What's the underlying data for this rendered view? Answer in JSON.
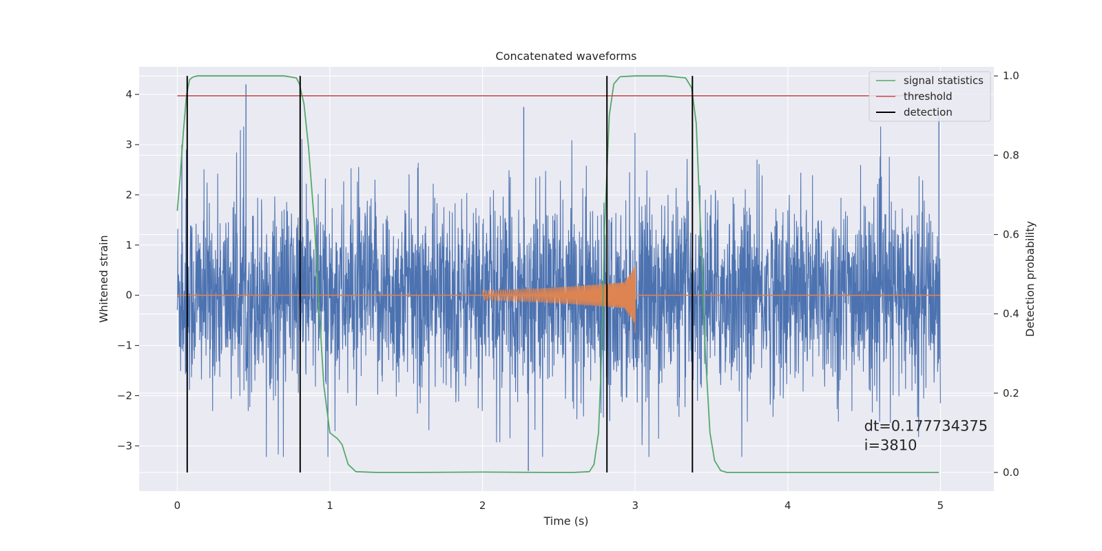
{
  "chart_data": {
    "type": "line",
    "title": "Concatenated waveforms",
    "xlabel": "Time (s)",
    "ylabel": "Whitened strain",
    "ylabel_right": "Detection probability",
    "xlim": [
      -0.25,
      5.35
    ],
    "ylim": [
      -3.9,
      4.55
    ],
    "ylim_right": [
      -0.047,
      1.023
    ],
    "xticks": [
      0,
      1,
      2,
      3,
      4,
      5
    ],
    "yticks": [
      -3,
      -2,
      -1,
      0,
      1,
      2,
      3,
      4
    ],
    "yticks_right": [
      0.0,
      0.2,
      0.4,
      0.6,
      0.8,
      1.0
    ],
    "xtick_labels": [
      "0",
      "1",
      "2",
      "3",
      "4",
      "5"
    ],
    "ytick_labels": [
      "−3",
      "−2",
      "−1",
      "0",
      "1",
      "2",
      "3",
      "4"
    ],
    "ytick_right_labels": [
      "0.0",
      "0.2",
      "0.4",
      "0.6",
      "0.8",
      "1.0"
    ],
    "grid": true,
    "legend_position": "top-right",
    "colors": {
      "strain": "#4c72b0",
      "template": "#dd8452",
      "signal_statistics": "#55a868",
      "threshold": "#c44e52",
      "detection": "#000000",
      "background": "#eaeaf2",
      "grid": "#ffffff"
    },
    "strain_noise": {
      "x_range": [
        0,
        5
      ],
      "amplitude_envelope": [
        -3.5,
        4.2
      ],
      "spikes": [
        {
          "x": 0.45,
          "y": 4.2
        },
        {
          "x": 2.27,
          "y": 3.75
        },
        {
          "x": 4.99,
          "y": 3.55
        },
        {
          "x": 2.3,
          "y": -3.5
        },
        {
          "x": 0.03,
          "y": 3.0
        },
        {
          "x": 0.06,
          "y": 2.9
        }
      ]
    },
    "template_chirp": {
      "x_range": [
        2.0,
        3.0
      ],
      "start_amplitude": 0.1,
      "peak": {
        "x": 3.0,
        "y": 0.6,
        "y_min": -0.75
      }
    },
    "series": [
      {
        "name": "signal statistics",
        "axis": "right",
        "x": [
          0.0,
          0.02,
          0.04,
          0.06,
          0.08,
          0.1,
          0.13,
          0.2,
          0.4,
          0.7,
          0.78,
          0.8,
          0.83,
          0.86,
          0.9,
          0.93,
          0.96,
          1.0,
          1.05,
          1.08,
          1.12,
          1.17,
          1.3,
          1.6,
          2.0,
          2.4,
          2.6,
          2.7,
          2.73,
          2.76,
          2.78,
          2.8,
          2.83,
          2.86,
          2.9,
          3.0,
          3.2,
          3.33,
          3.37,
          3.4,
          3.43,
          3.46,
          3.49,
          3.52,
          3.56,
          3.6,
          4.0,
          4.5,
          4.99
        ],
        "y": [
          0.66,
          0.75,
          0.86,
          0.95,
          0.99,
          0.997,
          1.0,
          1.0,
          1.0,
          1.0,
          0.995,
          0.98,
          0.93,
          0.82,
          0.62,
          0.41,
          0.22,
          0.1,
          0.085,
          0.07,
          0.02,
          0.002,
          0.0,
          0.0,
          0.001,
          0.0,
          0.0,
          0.002,
          0.02,
          0.1,
          0.3,
          0.62,
          0.9,
          0.98,
          0.998,
          1.0,
          1.0,
          0.995,
          0.97,
          0.88,
          0.6,
          0.3,
          0.1,
          0.03,
          0.005,
          0.0,
          0.0,
          0.0,
          0.0
        ]
      },
      {
        "name": "threshold",
        "axis": "right",
        "x": [
          0,
          5
        ],
        "y": [
          0.95,
          0.95
        ]
      },
      {
        "name": "detection",
        "axis": "right",
        "x_positions": [
          0.065,
          0.805,
          2.815,
          3.375
        ],
        "y_range": [
          0.0,
          1.0
        ]
      }
    ],
    "annotation": {
      "lines": [
        "dt=0.177734375",
        " i=3810"
      ],
      "x": 4.5,
      "y_right": 0.1
    }
  }
}
